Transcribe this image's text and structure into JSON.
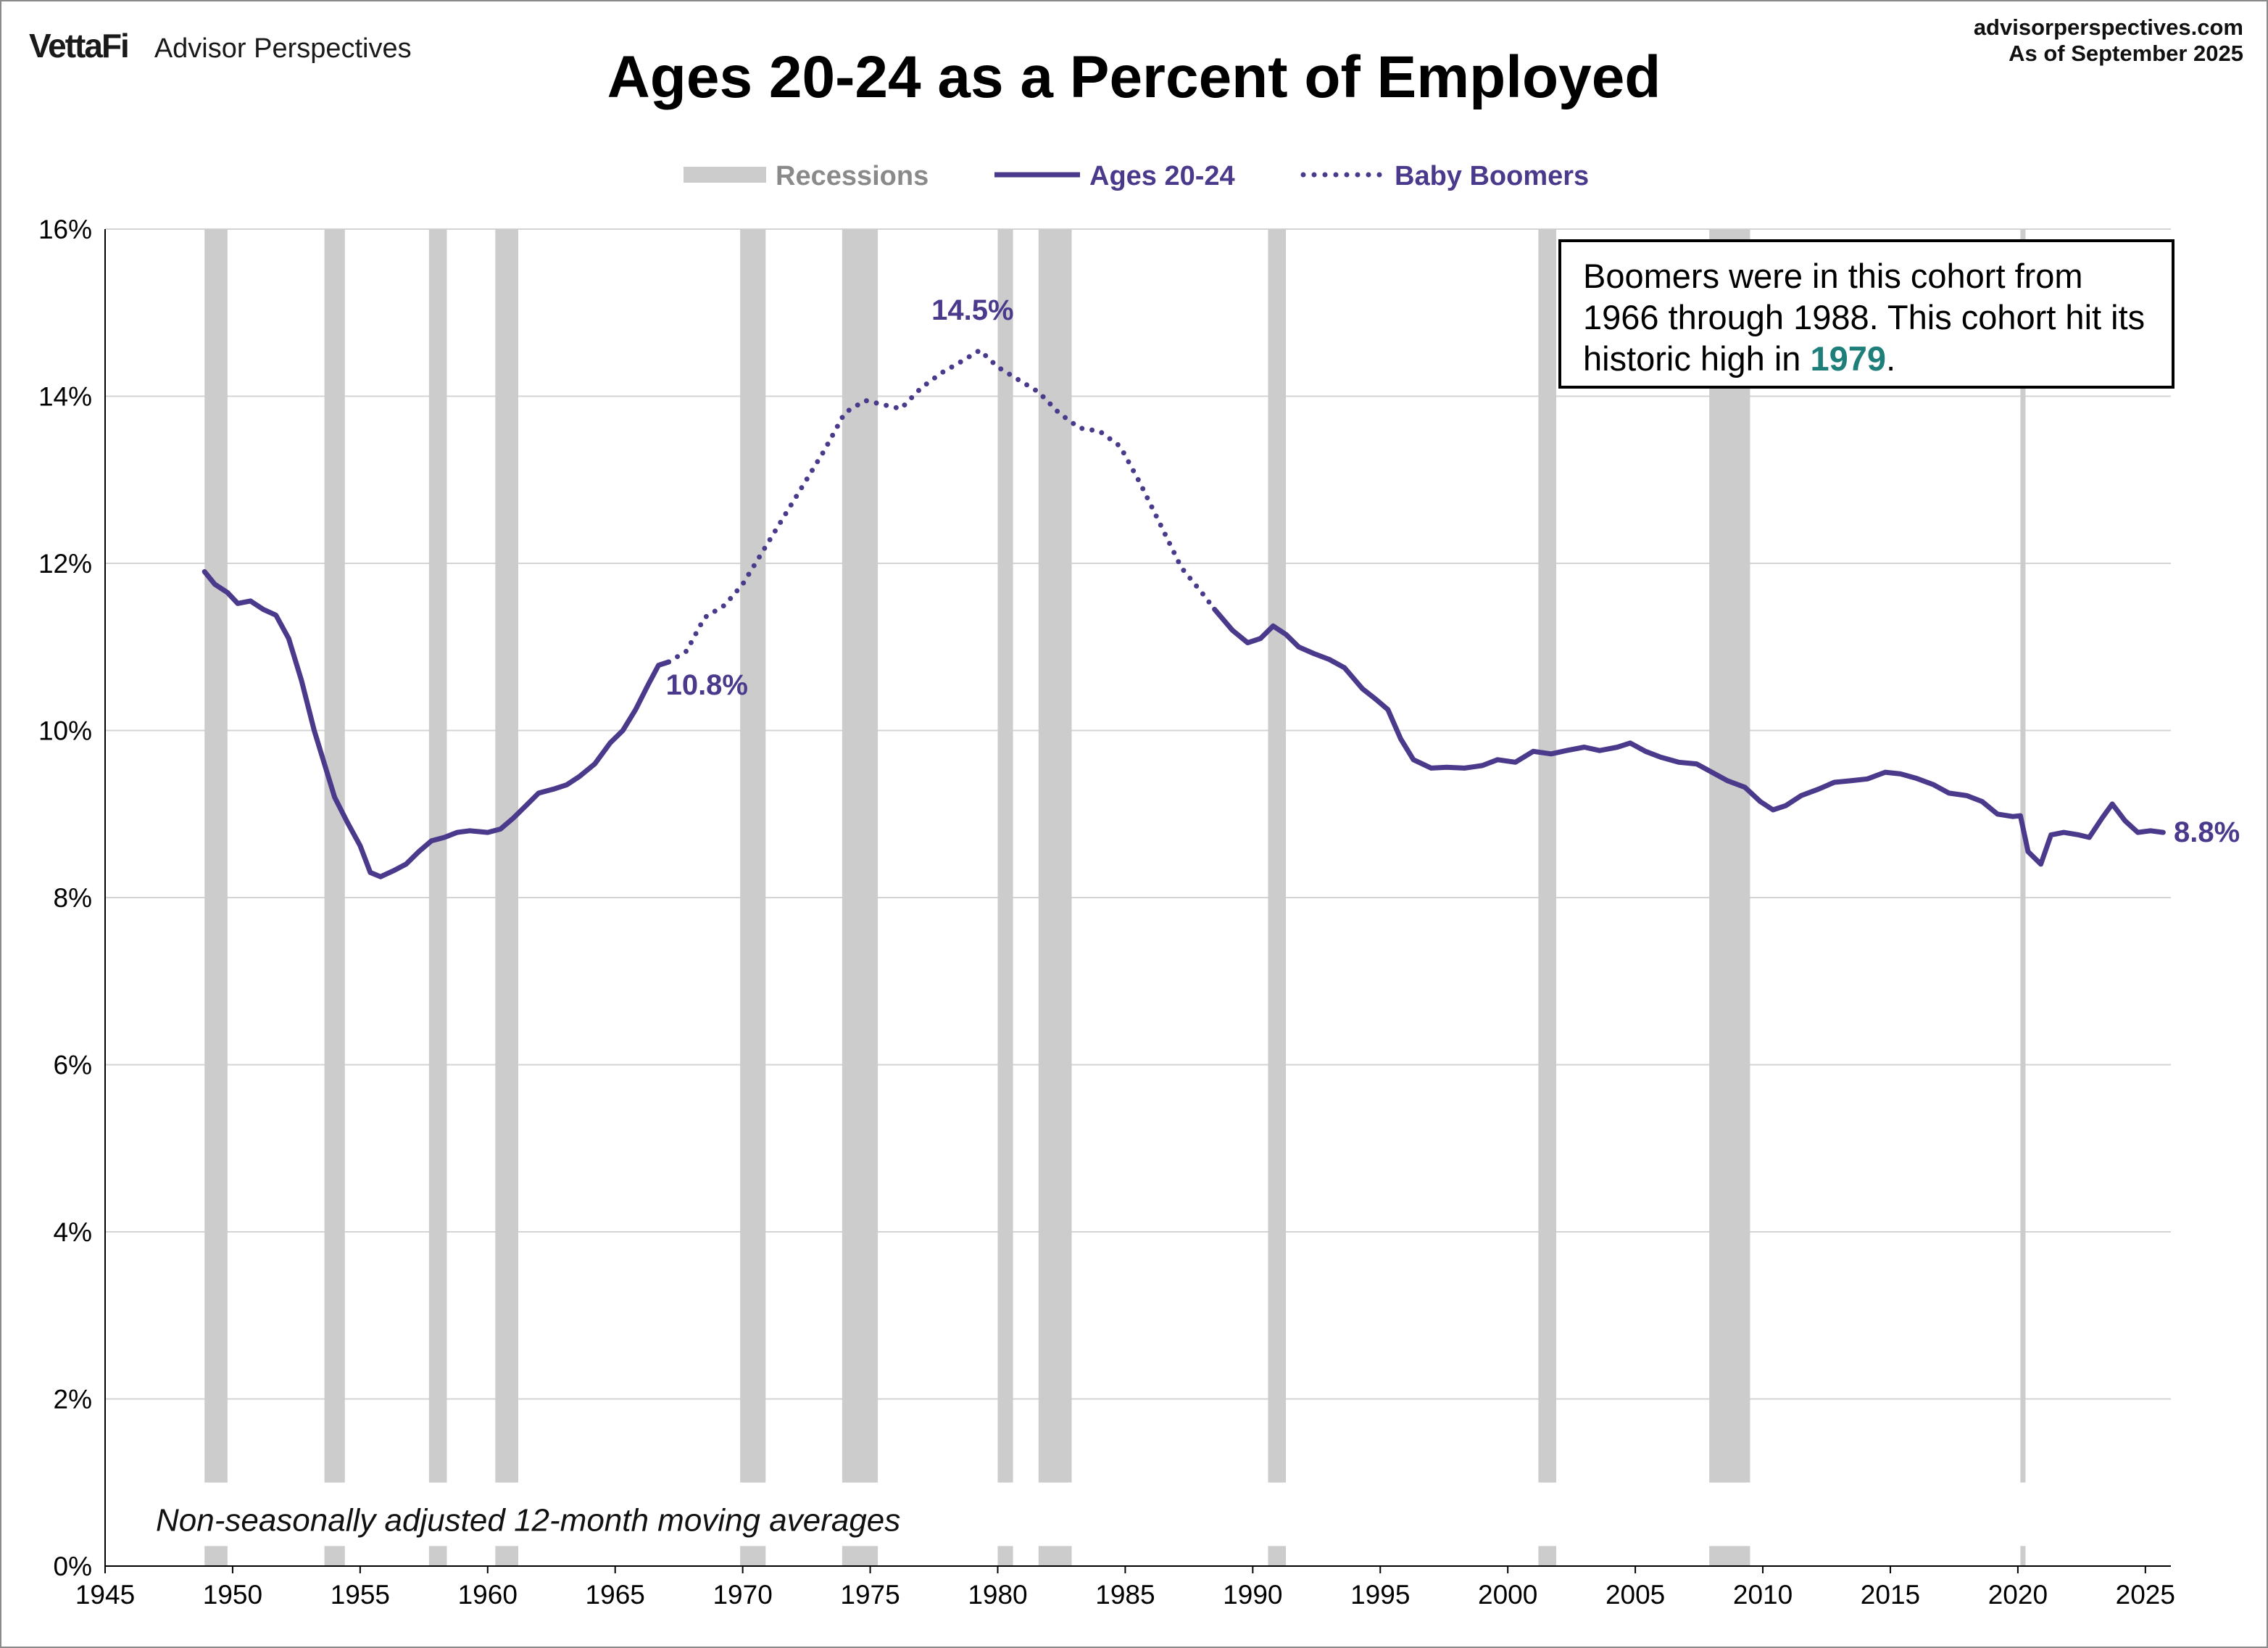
{
  "header": {
    "logo": "VettaFi",
    "brand": "Advisor Perspectives",
    "site": "advisorperspectives.com",
    "as_of": "As of September 2025"
  },
  "colors": {
    "line": "#4B3A8C",
    "recession": "#CCCCCC",
    "highlight": "#1E7F7A"
  },
  "note_box": {
    "text_before": "Boomers were in this cohort from 1966 through 1988. This cohort hit its historic high in ",
    "highlight": "1979",
    "text_after": "."
  },
  "chart_data": {
    "type": "line",
    "title": "Ages 20-24 as a Percent of Employed",
    "xlabel": "",
    "ylabel": "",
    "xlim": [
      1945,
      2026
    ],
    "ylim": [
      0,
      16
    ],
    "y_ticks": [
      "0%",
      "2%",
      "4%",
      "6%",
      "8%",
      "10%",
      "12%",
      "14%",
      "16%"
    ],
    "x_ticks": [
      "1945",
      "1950",
      "1955",
      "1960",
      "1965",
      "1970",
      "1975",
      "1980",
      "1985",
      "1990",
      "1995",
      "2000",
      "2005",
      "2010",
      "2015",
      "2020",
      "2025"
    ],
    "grid": "horizontal",
    "legend": {
      "position": "top-center",
      "entries": [
        "Recessions",
        "Ages 20-24",
        "Baby Boomers"
      ]
    },
    "annotations": {
      "peak_label": "14.5%",
      "boomer_start_label": "10.8%",
      "last_label": "8.8%",
      "footnote": "Non-seasonally adjusted  12-month moving averages"
    },
    "recessions": [
      [
        1948.9,
        1949.8
      ],
      [
        1953.6,
        1954.4
      ],
      [
        1957.7,
        1958.4
      ],
      [
        1960.3,
        1961.2
      ],
      [
        1969.9,
        1970.9
      ],
      [
        1973.9,
        1975.3
      ],
      [
        1980.0,
        1980.6
      ],
      [
        1981.6,
        1982.9
      ],
      [
        1990.6,
        1991.3
      ],
      [
        2001.2,
        2001.9
      ],
      [
        2007.9,
        2009.5
      ],
      [
        2020.1,
        2020.3
      ]
    ],
    "series": [
      {
        "name": "Ages 20-24",
        "style": "solid",
        "points": [
          [
            1948.9,
            11.9
          ],
          [
            1949.3,
            11.75
          ],
          [
            1949.8,
            11.65
          ],
          [
            1950.2,
            11.52
          ],
          [
            1950.7,
            11.55
          ],
          [
            1951.2,
            11.45
          ],
          [
            1951.7,
            11.38
          ],
          [
            1952.2,
            11.1
          ],
          [
            1952.7,
            10.6
          ],
          [
            1953.2,
            10.0
          ],
          [
            1953.6,
            9.6
          ],
          [
            1954.0,
            9.2
          ],
          [
            1954.5,
            8.9
          ],
          [
            1955.0,
            8.62
          ],
          [
            1955.4,
            8.3
          ],
          [
            1955.8,
            8.25
          ],
          [
            1956.3,
            8.32
          ],
          [
            1956.8,
            8.4
          ],
          [
            1957.3,
            8.55
          ],
          [
            1957.8,
            8.68
          ],
          [
            1958.3,
            8.72
          ],
          [
            1958.8,
            8.78
          ],
          [
            1959.3,
            8.8
          ],
          [
            1960.0,
            8.78
          ],
          [
            1960.5,
            8.82
          ],
          [
            1961.0,
            8.95
          ],
          [
            1961.5,
            9.1
          ],
          [
            1962.0,
            9.25
          ],
          [
            1962.6,
            9.3
          ],
          [
            1963.1,
            9.35
          ],
          [
            1963.6,
            9.45
          ],
          [
            1964.2,
            9.6
          ],
          [
            1964.8,
            9.85
          ],
          [
            1965.3,
            10.0
          ],
          [
            1965.8,
            10.25
          ],
          [
            1966.3,
            10.55
          ],
          [
            1966.7,
            10.78
          ],
          [
            1967.1,
            10.82
          ]
        ]
      },
      {
        "name": "Baby Boomers",
        "style": "dotted",
        "points": [
          [
            1967.1,
            10.82
          ],
          [
            1967.8,
            10.95
          ],
          [
            1968.5,
            11.35
          ],
          [
            1969.3,
            11.5
          ],
          [
            1970.0,
            11.75
          ],
          [
            1970.8,
            12.15
          ],
          [
            1971.6,
            12.55
          ],
          [
            1972.4,
            12.95
          ],
          [
            1973.2,
            13.35
          ],
          [
            1974.0,
            13.8
          ],
          [
            1974.8,
            13.95
          ],
          [
            1975.5,
            13.9
          ],
          [
            1976.2,
            13.85
          ],
          [
            1977.0,
            14.1
          ],
          [
            1977.8,
            14.28
          ],
          [
            1978.6,
            14.42
          ],
          [
            1979.3,
            14.55
          ],
          [
            1980.0,
            14.35
          ],
          [
            1980.8,
            14.2
          ],
          [
            1981.6,
            14.05
          ],
          [
            1982.4,
            13.8
          ],
          [
            1983.2,
            13.62
          ],
          [
            1984.0,
            13.58
          ],
          [
            1984.8,
            13.4
          ],
          [
            1985.6,
            12.95
          ],
          [
            1986.4,
            12.45
          ],
          [
            1987.2,
            11.95
          ],
          [
            1988.0,
            11.65
          ],
          [
            1988.5,
            11.45
          ]
        ]
      },
      {
        "name": "Ages 20-24",
        "style": "solid",
        "points": [
          [
            1988.5,
            11.45
          ],
          [
            1989.2,
            11.2
          ],
          [
            1989.8,
            11.05
          ],
          [
            1990.3,
            11.1
          ],
          [
            1990.8,
            11.25
          ],
          [
            1991.3,
            11.15
          ],
          [
            1991.8,
            11.0
          ],
          [
            1992.4,
            10.92
          ],
          [
            1993.0,
            10.85
          ],
          [
            1993.6,
            10.75
          ],
          [
            1994.3,
            10.5
          ],
          [
            1994.8,
            10.38
          ],
          [
            1995.3,
            10.25
          ],
          [
            1995.8,
            9.9
          ],
          [
            1996.3,
            9.65
          ],
          [
            1997.0,
            9.55
          ],
          [
            1997.6,
            9.56
          ],
          [
            1998.3,
            9.55
          ],
          [
            1999.0,
            9.58
          ],
          [
            1999.6,
            9.65
          ],
          [
            2000.3,
            9.62
          ],
          [
            2001.0,
            9.75
          ],
          [
            2001.7,
            9.72
          ],
          [
            2002.3,
            9.76
          ],
          [
            2003.0,
            9.8
          ],
          [
            2003.6,
            9.76
          ],
          [
            2004.3,
            9.8
          ],
          [
            2004.8,
            9.85
          ],
          [
            2005.4,
            9.75
          ],
          [
            2006.0,
            9.68
          ],
          [
            2006.7,
            9.62
          ],
          [
            2007.4,
            9.6
          ],
          [
            2008.0,
            9.5
          ],
          [
            2008.6,
            9.4
          ],
          [
            2009.3,
            9.32
          ],
          [
            2009.9,
            9.15
          ],
          [
            2010.4,
            9.05
          ],
          [
            2010.9,
            9.1
          ],
          [
            2011.5,
            9.22
          ],
          [
            2012.2,
            9.3
          ],
          [
            2012.8,
            9.38
          ],
          [
            2013.5,
            9.4
          ],
          [
            2014.1,
            9.42
          ],
          [
            2014.8,
            9.5
          ],
          [
            2015.4,
            9.48
          ],
          [
            2016.0,
            9.43
          ],
          [
            2016.7,
            9.35
          ],
          [
            2017.3,
            9.25
          ],
          [
            2018.0,
            9.22
          ],
          [
            2018.6,
            9.15
          ],
          [
            2019.2,
            9.0
          ],
          [
            2019.8,
            8.97
          ],
          [
            2020.1,
            8.98
          ],
          [
            2020.4,
            8.55
          ],
          [
            2020.9,
            8.4
          ],
          [
            2021.3,
            8.75
          ],
          [
            2021.8,
            8.78
          ],
          [
            2022.4,
            8.75
          ],
          [
            2022.8,
            8.72
          ],
          [
            2023.3,
            8.95
          ],
          [
            2023.7,
            9.12
          ],
          [
            2024.2,
            8.92
          ],
          [
            2024.7,
            8.78
          ],
          [
            2025.2,
            8.8
          ],
          [
            2025.7,
            8.78
          ]
        ]
      }
    ]
  }
}
